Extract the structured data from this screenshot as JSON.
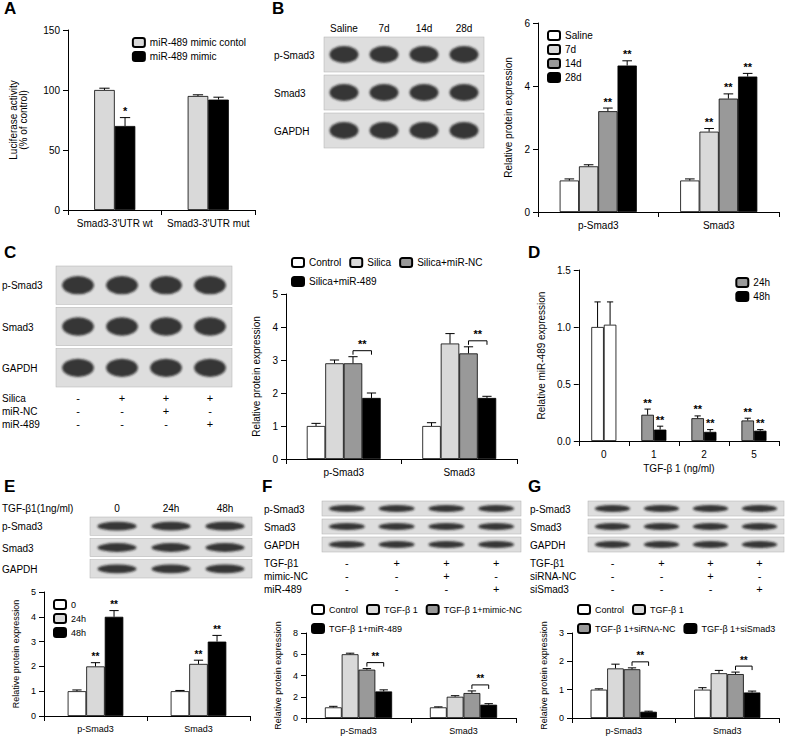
{
  "chart_data": [
    {
      "type": "bar",
      "title": "A",
      "y_label": "Luciferase activity\n(% of control)",
      "categories": [
        "Smad3-3'UTR wt",
        "Smad3-3'UTR mut"
      ],
      "series": [
        {
          "name": "miR-489 mimic contol",
          "color": "#d9d9d9",
          "values": [
            100,
            95
          ],
          "errors": [
            1.5,
            1
          ]
        },
        {
          "name": "miR-489 mimic",
          "color": "#000000",
          "values": [
            70,
            92
          ],
          "errors": [
            7,
            2
          ]
        }
      ],
      "ylim": [
        0,
        150
      ],
      "yticks": [
        0,
        50,
        100,
        150
      ],
      "grid": false,
      "legend": "upper right",
      "annotations": [
        {
          "text": "*",
          "category": "Smad3-3'UTR wt",
          "series": "miR-489 mimic"
        }
      ]
    },
    {
      "type": "bar",
      "title": "B",
      "y_label": "Relative protein expression",
      "categories": [
        "p-Smad3",
        "Smad3"
      ],
      "series": [
        {
          "name": "Saline",
          "color": "#ffffff",
          "values": [
            1.0,
            1.0
          ],
          "errors": [
            0.05,
            0.05
          ]
        },
        {
          "name": "7d",
          "color": "#d9d9d9",
          "values": [
            1.45,
            2.55
          ],
          "errors": [
            0.05,
            0.1
          ]
        },
        {
          "name": "14d",
          "color": "#999999",
          "values": [
            3.2,
            3.6
          ],
          "errors": [
            0.1,
            0.15
          ]
        },
        {
          "name": "28d",
          "color": "#000000",
          "values": [
            4.65,
            4.3
          ],
          "errors": [
            0.15,
            0.1
          ]
        }
      ],
      "ylim": [
        0,
        6
      ],
      "yticks": [
        0,
        2,
        4,
        6
      ],
      "grid": false,
      "legend": "upper left",
      "annotations": [
        {
          "text": "**",
          "category": "p-Smad3",
          "series": "14d"
        },
        {
          "text": "**",
          "category": "p-Smad3",
          "series": "28d"
        },
        {
          "text": "**",
          "category": "Smad3",
          "series": "7d"
        },
        {
          "text": "**",
          "category": "Smad3",
          "series": "14d"
        },
        {
          "text": "**",
          "category": "Smad3",
          "series": "28d"
        }
      ]
    },
    {
      "type": "bar",
      "title": "C",
      "y_label": "Relative protein expression",
      "categories": [
        "p-Smad3",
        "Smad3"
      ],
      "series": [
        {
          "name": "Control",
          "color": "#ffffff",
          "values": [
            1.0,
            1.0
          ],
          "errors": [
            0.08,
            0.1
          ]
        },
        {
          "name": "Silica",
          "color": "#d9d9d9",
          "values": [
            2.9,
            3.5
          ],
          "errors": [
            0.1,
            0.3
          ]
        },
        {
          "name": "Silica+miR-NC",
          "color": "#999999",
          "values": [
            2.9,
            3.2
          ],
          "errors": [
            0.2,
            0.2
          ]
        },
        {
          "name": "Silica+miR-489",
          "color": "#000000",
          "values": [
            1.85,
            1.85
          ],
          "errors": [
            0.15,
            0.05
          ]
        }
      ],
      "ylim": [
        0,
        5
      ],
      "yticks": [
        0,
        1,
        2,
        3,
        4,
        5
      ],
      "grid": false,
      "legend": "top",
      "comparisons": [
        {
          "category": "p-Smad3",
          "from": "Silica+miR-NC",
          "to": "Silica+miR-489",
          "text": "**"
        },
        {
          "category": "Smad3",
          "from": "Silica+miR-NC",
          "to": "Silica+miR-489",
          "text": "**"
        }
      ]
    },
    {
      "type": "bar",
      "title": "D",
      "y_label": "Relative miR-489 expression",
      "x_label": "TGF-β 1 (ng/ml)",
      "categories": [
        "0",
        "1",
        "2",
        "5"
      ],
      "series": [
        {
          "name": "24h",
          "color": "#999999",
          "colors": [
            "#ffffff",
            "#999999",
            "#999999",
            "#999999"
          ],
          "values": [
            1.0,
            0.23,
            0.2,
            0.18
          ],
          "errors": [
            0.22,
            0.05,
            0.02,
            0.02
          ]
        },
        {
          "name": "48h",
          "color": "#000000",
          "colors": [
            "#ffffff",
            "#000000",
            "#000000",
            "#000000"
          ],
          "values": [
            1.02,
            0.1,
            0.08,
            0.09
          ],
          "errors": [
            0.2,
            0.03,
            0.02,
            0.01
          ]
        }
      ],
      "ylim": [
        0,
        1.5
      ],
      "yticks": [
        {
          "value": 0,
          "label": "0.0"
        },
        0.5,
        {
          "value": 1,
          "label": "1.0"
        },
        1.5
      ],
      "grid": false,
      "legend": "upper right",
      "annotations": [
        {
          "text": "**",
          "category": "1",
          "series": "24h"
        },
        {
          "text": "**",
          "category": "1",
          "series": "48h"
        },
        {
          "text": "**",
          "category": "2",
          "series": "24h"
        },
        {
          "text": "**",
          "category": "2",
          "series": "48h"
        },
        {
          "text": "**",
          "category": "5",
          "series": "24h"
        },
        {
          "text": "**",
          "category": "5",
          "series": "48h"
        }
      ]
    },
    {
      "type": "bar",
      "title": "E",
      "y_label": "Relative protein expression",
      "categories": [
        "p-Smad3",
        "Smad3"
      ],
      "series": [
        {
          "name": "0",
          "color": "#ffffff",
          "values": [
            1.0,
            1.0
          ],
          "errors": [
            0.05,
            0.03
          ]
        },
        {
          "name": "24h",
          "color": "#d9d9d9",
          "values": [
            2.0,
            2.1
          ],
          "errors": [
            0.15,
            0.15
          ]
        },
        {
          "name": "48h",
          "color": "#000000",
          "values": [
            4.0,
            3.0
          ],
          "errors": [
            0.25,
            0.25
          ]
        }
      ],
      "ylim": [
        0,
        5
      ],
      "yticks": [
        0,
        1,
        2,
        3,
        4,
        5
      ],
      "grid": false,
      "legend": "upper left",
      "annotations": [
        {
          "text": "**",
          "category": "p-Smad3",
          "series": "24h"
        },
        {
          "text": "**",
          "category": "p-Smad3",
          "series": "48h"
        },
        {
          "text": "**",
          "category": "Smad3",
          "series": "24h"
        },
        {
          "text": "**",
          "category": "Smad3",
          "series": "48h"
        }
      ]
    },
    {
      "type": "bar",
      "title": "F",
      "y_label": "Relative protein expression",
      "categories": [
        "p-Smad3",
        "Smad3"
      ],
      "series": [
        {
          "name": "Control",
          "color": "#ffffff",
          "values": [
            1.0,
            1.0
          ],
          "errors": [
            0.1,
            0.05
          ]
        },
        {
          "name": "TGF-β 1",
          "color": "#d9d9d9",
          "values": [
            6.0,
            2.0
          ],
          "errors": [
            0.1,
            0.1
          ]
        },
        {
          "name": "TGF-β 1+mimic-NC",
          "color": "#999999",
          "values": [
            4.55,
            2.35
          ],
          "errors": [
            0.1,
            0.2
          ]
        },
        {
          "name": "TGF-β 1+miR-489",
          "color": "#000000",
          "values": [
            2.5,
            1.25
          ],
          "errors": [
            0.15,
            0.1
          ]
        }
      ],
      "ylim": [
        0,
        8
      ],
      "yticks": [
        0,
        2,
        4,
        6,
        8
      ],
      "grid": false,
      "legend": "top",
      "comparisons": [
        {
          "category": "p-Smad3",
          "from": "TGF-β 1+mimic-NC",
          "to": "TGF-β 1+miR-489",
          "text": "**"
        },
        {
          "category": "Smad3",
          "from": "TGF-β 1+mimic-NC",
          "to": "TGF-β 1+miR-489",
          "text": "**"
        }
      ]
    },
    {
      "type": "bar",
      "title": "G",
      "y_label": "Relative protein expression",
      "categories": [
        "p-Smad3",
        "Smad3"
      ],
      "series": [
        {
          "name": "Control",
          "color": "#ffffff",
          "values": [
            1.0,
            1.0
          ],
          "errors": [
            0.03,
            0.07
          ]
        },
        {
          "name": "TGF-β 1",
          "color": "#d9d9d9",
          "values": [
            1.75,
            1.58
          ],
          "errors": [
            0.15,
            0.1
          ]
        },
        {
          "name": "TGF-β 1+siRNA-NC",
          "color": "#999999",
          "values": [
            1.72,
            1.55
          ],
          "errors": [
            0.05,
            0.07
          ]
        },
        {
          "name": "TGF-β 1+siSmad3",
          "color": "#000000",
          "values": [
            0.22,
            0.9
          ],
          "errors": [
            0.02,
            0.05
          ]
        }
      ],
      "ylim": [
        0,
        3
      ],
      "yticks": [
        0,
        1,
        2,
        3
      ],
      "grid": false,
      "legend": "top",
      "comparisons": [
        {
          "category": "p-Smad3",
          "from": "TGF-β 1+siRNA-NC",
          "to": "TGF-β 1+siSmad3",
          "text": "**"
        },
        {
          "category": "Smad3",
          "from": "TGF-β 1+siRNA-NC",
          "to": "TGF-β 1+siSmad3",
          "text": "**"
        }
      ]
    }
  ],
  "blots": [
    {
      "panel": "B",
      "lanes": [
        "Saline",
        "7d",
        "14d",
        "28d"
      ],
      "rows": [
        "p-Smad3",
        "Smad3",
        "GAPDH"
      ]
    },
    {
      "panel": "C",
      "rows": [
        "p-Smad3",
        "Smad3",
        "GAPDH"
      ],
      "conditions": [
        {
          "label": "Silica",
          "marks": [
            "-",
            "+",
            "+",
            "+"
          ]
        },
        {
          "label": "miR-NC",
          "marks": [
            "-",
            "-",
            "+",
            "-"
          ]
        },
        {
          "label": "miR-489",
          "marks": [
            "-",
            "-",
            "-",
            "+"
          ]
        }
      ]
    },
    {
      "panel": "E",
      "header": "TGF-β1(1ng/ml)",
      "lanes": [
        "0",
        "24h",
        "48h"
      ],
      "rows": [
        "p-Smad3",
        "Smad3",
        "GAPDH"
      ]
    },
    {
      "panel": "F",
      "rows": [
        "p-Smad3",
        "Smad3",
        "GAPDH"
      ],
      "conditions": [
        {
          "label": "TGF-β1",
          "marks": [
            "-",
            "+",
            "+",
            "+"
          ]
        },
        {
          "label": "mimic-NC",
          "marks": [
            "-",
            "-",
            "+",
            "-"
          ]
        },
        {
          "label": "miR-489",
          "marks": [
            "-",
            "-",
            "-",
            "+"
          ]
        }
      ]
    },
    {
      "panel": "G",
      "rows": [
        "p-Smad3",
        "Smad3",
        "GAPDH"
      ],
      "conditions": [
        {
          "label": "TGF-β1",
          "marks": [
            "-",
            "+",
            "+",
            "+"
          ]
        },
        {
          "label": "siRNA-NC",
          "marks": [
            "-",
            "-",
            "+",
            "-"
          ]
        },
        {
          "label": "siSmad3",
          "marks": [
            "-",
            "-",
            "-",
            "+"
          ]
        }
      ]
    }
  ]
}
